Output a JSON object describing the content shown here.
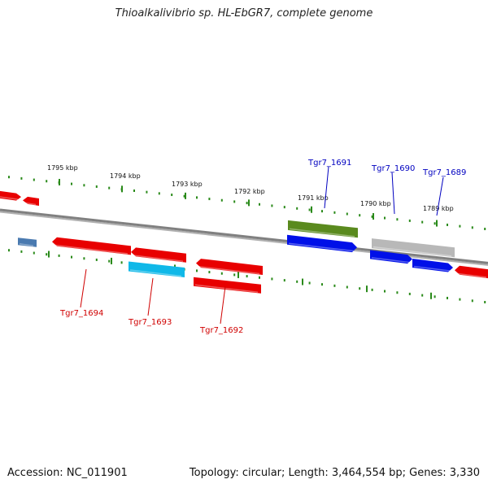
{
  "title": "Thioalkalivibrio sp. HL-EbGR7, complete genome",
  "accession": "Accession: NC_011901",
  "summary": "Topology: circular; Length: 3,464,554 bp; Genes: 3,330",
  "colors": {
    "forward_gene": "#e80000",
    "reverse_gene": "#0010e8",
    "tick": "#2a8a1a",
    "backbone": "#808080",
    "olive_gene": "#5a8a1e",
    "grey_gene": "#b8b8b8",
    "cyan_gene": "#10b8e8",
    "steel_gene": "#4a7ab0",
    "label_red": "#d00000",
    "label_blue": "#0000c0"
  },
  "kbp_labels": [
    "1795 kbp",
    "1794 kbp",
    "1793 kbp",
    "1792 kbp",
    "1791 kbp",
    "1790 kbp",
    "1789 kbp"
  ],
  "gene_labels": {
    "top": [
      "Tgr7_1691",
      "Tgr7_1690",
      "Tgr7_1689"
    ],
    "bottom": [
      "Tgr7_1694",
      "Tgr7_1693",
      "Tgr7_1692"
    ]
  }
}
